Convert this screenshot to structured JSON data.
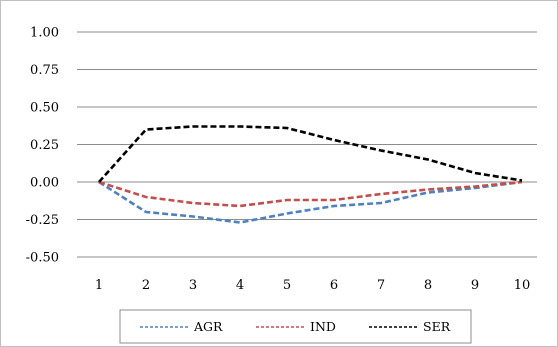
{
  "chart_data": {
    "type": "line",
    "title": "",
    "xlabel": "",
    "ylabel": "",
    "x": [
      1,
      2,
      3,
      4,
      5,
      6,
      7,
      8,
      9,
      10
    ],
    "x_tick_labels": [
      "1",
      "2",
      "3",
      "4",
      "5",
      "6",
      "7",
      "8",
      "9",
      "10"
    ],
    "ylim": [
      -0.5,
      1.0
    ],
    "y_ticks": [
      1.0,
      0.75,
      0.5,
      0.25,
      0.0,
      -0.25,
      -0.5
    ],
    "y_tick_labels": [
      "1.00",
      "0.75",
      "0.50",
      "0.25",
      "0.00",
      "-0.25",
      "-0.50"
    ],
    "grid": "horizontal",
    "legend_position": "bottom",
    "series": [
      {
        "name": "AGR",
        "color": "#4f81bd",
        "style": "dashed",
        "values": [
          0.0,
          -0.2,
          -0.23,
          -0.27,
          -0.21,
          -0.16,
          -0.14,
          -0.07,
          -0.04,
          0.0
        ]
      },
      {
        "name": "IND",
        "color": "#c0504d",
        "style": "dashed",
        "values": [
          0.0,
          -0.1,
          -0.14,
          -0.16,
          -0.12,
          -0.12,
          -0.08,
          -0.05,
          -0.03,
          0.0
        ]
      },
      {
        "name": "SER",
        "color": "#000000",
        "style": "dashed",
        "values": [
          0.0,
          0.35,
          0.37,
          0.37,
          0.36,
          0.28,
          0.21,
          0.15,
          0.06,
          0.01
        ]
      }
    ]
  }
}
